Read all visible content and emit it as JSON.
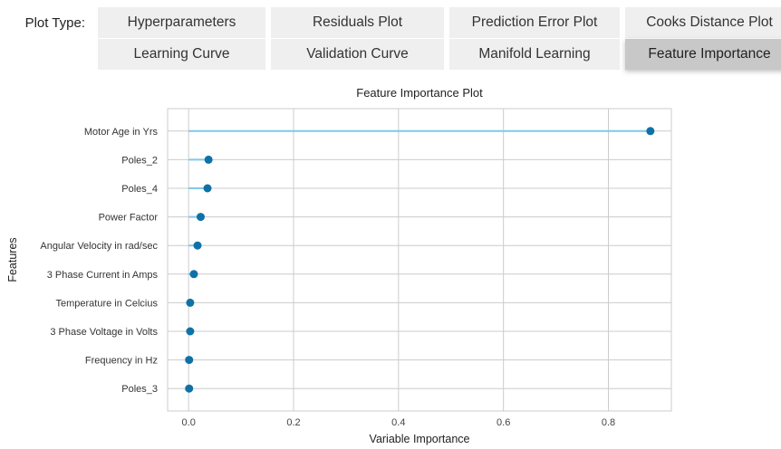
{
  "header": {
    "plot_type_label": "Plot Type:"
  },
  "plot_buttons": [
    {
      "label": "Hyperparameters",
      "selected": false
    },
    {
      "label": "Residuals Plot",
      "selected": false
    },
    {
      "label": "Prediction Error Plot",
      "selected": false
    },
    {
      "label": "Cooks Distance Plot",
      "selected": false
    },
    {
      "label": "Learning Curve",
      "selected": false
    },
    {
      "label": "Validation Curve",
      "selected": false
    },
    {
      "label": "Manifold Learning",
      "selected": false
    },
    {
      "label": "Feature Importance",
      "selected": true
    }
  ],
  "chart_data": {
    "type": "lollipop",
    "orientation": "horizontal",
    "title": "Feature Importance Plot",
    "xlabel": "Variable Importance",
    "ylabel": "Features",
    "xlim": [
      -0.04,
      0.92
    ],
    "xticks": [
      0.0,
      0.2,
      0.4,
      0.6,
      0.8
    ],
    "xtick_labels": [
      "0.0",
      "0.2",
      "0.4",
      "0.6",
      "0.8"
    ],
    "grid": true,
    "colors": {
      "marker": "#0f72a6",
      "stem": "#7fc8ea",
      "grid": "#cccccc",
      "frame": "#cccccc"
    },
    "categories": [
      "Motor Age in Yrs",
      "Poles_2",
      "Poles_4",
      "Power Factor",
      "Angular Velocity in rad/sec",
      "3 Phase Current in Amps",
      "Temperature in Celcius",
      "3 Phase Voltage in Volts",
      "Frequency in Hz",
      "Poles_3"
    ],
    "values": [
      0.88,
      0.038,
      0.036,
      0.023,
      0.017,
      0.01,
      0.003,
      0.003,
      0.001,
      0.001
    ]
  }
}
